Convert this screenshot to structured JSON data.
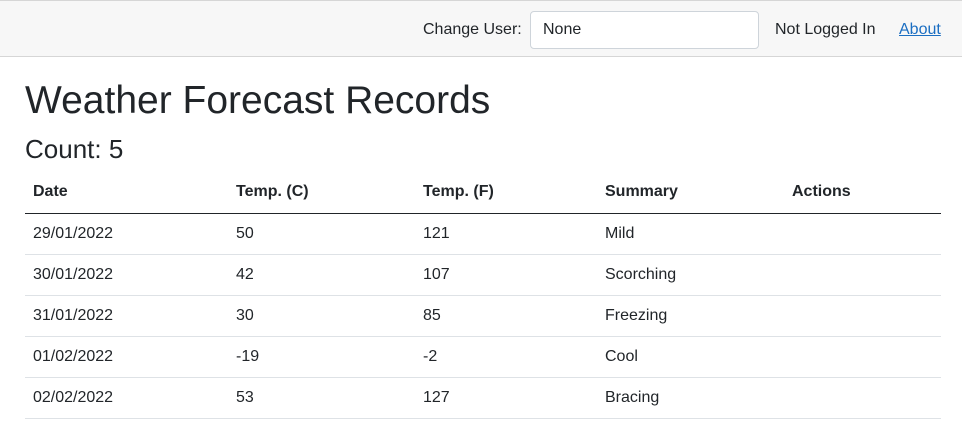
{
  "header": {
    "change_user_label": "Change User:",
    "user_value": "None",
    "status": "Not Logged In",
    "about": "About"
  },
  "main": {
    "title": "Weather Forecast Records",
    "count_label": "Count: 5"
  },
  "table": {
    "columns": [
      "Date",
      "Temp. (C)",
      "Temp. (F)",
      "Summary",
      "Actions"
    ],
    "rows": [
      {
        "date": "29/01/2022",
        "temp_c": "50",
        "temp_f": "121",
        "summary": "Mild"
      },
      {
        "date": "30/01/2022",
        "temp_c": "42",
        "temp_f": "107",
        "summary": "Scorching"
      },
      {
        "date": "31/01/2022",
        "temp_c": "30",
        "temp_f": "85",
        "summary": "Freezing"
      },
      {
        "date": "01/02/2022",
        "temp_c": "-19",
        "temp_f": "-2",
        "summary": "Cool"
      },
      {
        "date": "02/02/2022",
        "temp_c": "53",
        "temp_f": "127",
        "summary": "Bracing"
      }
    ]
  },
  "colors": {
    "link": "#1b6ec2",
    "topbar_bg": "#f7f7f7",
    "text": "#212529"
  }
}
